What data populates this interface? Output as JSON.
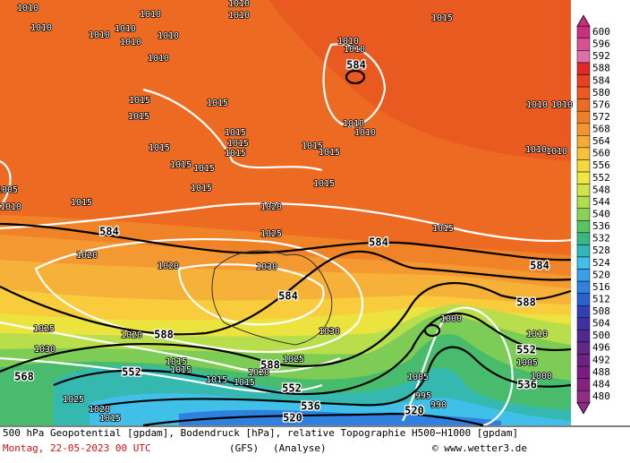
{
  "map": {
    "height_labels": [
      "584",
      "584",
      "584",
      "584",
      "588",
      "588",
      "588",
      "568",
      "552",
      "552",
      "552",
      "536",
      "536",
      "520",
      "520",
      "584"
    ],
    "isobar_labels": [
      "1010",
      "1010",
      "1010",
      "1010",
      "1010",
      "1010",
      "1010",
      "1010",
      "1010",
      "1010",
      "1015",
      "1010",
      "1010",
      "1010",
      "1010",
      "1010",
      "1010",
      "1015",
      "1015",
      "1015",
      "1015",
      "1015",
      "1015",
      "1015",
      "1015",
      "1015",
      "1015",
      "1015",
      "1015",
      "1015",
      "1005",
      "1010",
      "1015",
      "1020",
      "1025",
      "1015",
      "1020",
      "1020",
      "1030",
      "1030",
      "1025",
      "1030",
      "1020",
      "1025",
      "1015",
      "1015",
      "1020",
      "1015",
      "1015",
      "1005",
      "1000",
      "1010",
      "1005",
      "1000",
      "995",
      "990",
      "1025",
      "1020",
      "1015",
      "1010",
      "1010"
    ]
  },
  "colorbar": {
    "labels": [
      600,
      596,
      592,
      588,
      584,
      580,
      576,
      572,
      568,
      564,
      560,
      556,
      552,
      548,
      544,
      540,
      536,
      532,
      528,
      524,
      520,
      516,
      512,
      508,
      504,
      500,
      496,
      492,
      488,
      484,
      480
    ],
    "colors": [
      "#c8307e",
      "#d8508f",
      "#e070a8",
      "#e02828",
      "#e84020",
      "#ec5820",
      "#ee6c20",
      "#f08028",
      "#f49630",
      "#f6ac34",
      "#f8c238",
      "#f8d83c",
      "#f0e840",
      "#d0e448",
      "#b0dc50",
      "#88d058",
      "#58c460",
      "#38b880",
      "#30b8b8",
      "#40c0e8",
      "#3aa0e8",
      "#3080e0",
      "#2a60d0",
      "#3040b0",
      "#4030a0",
      "#502890",
      "#602888",
      "#702080",
      "#7c1c80",
      "#882080",
      "#902c88"
    ]
  },
  "footer": {
    "line1": "500 hPa Geopotential [gpdam], Bodendruck [hPa], relative Topographie H500−H1000 [gpdam]",
    "date": "Montag, 22-05-2023  00 UTC",
    "model": "(GFS)",
    "run": "(Analyse)",
    "credit": "© www.wetter3.de"
  }
}
